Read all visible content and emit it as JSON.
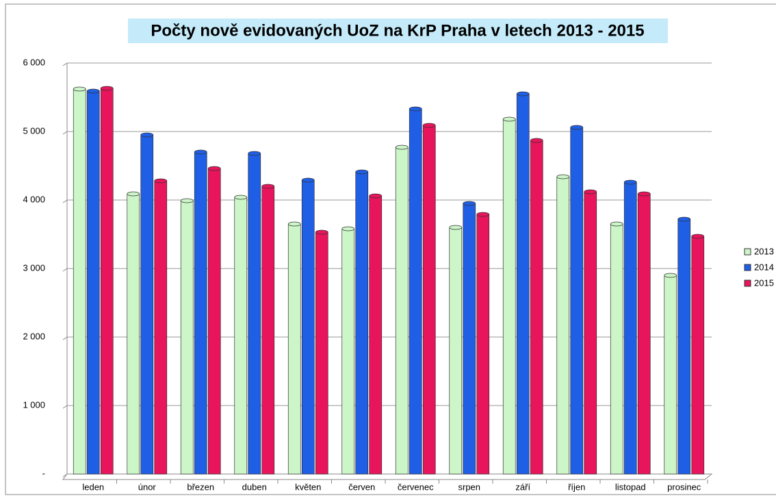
{
  "chart_data": {
    "type": "bar",
    "title": "Počty nově evidovaných UoZ na KrP Praha v letech 2013 - 2015",
    "categories": [
      "leden",
      "únor",
      "březen",
      "duben",
      "květen",
      "červen",
      "červenec",
      "srpen",
      "září",
      "říjen",
      "listopad",
      "prosinec"
    ],
    "series": [
      {
        "name": "2013",
        "color": "#ccf5c8",
        "values": [
          5620,
          4090,
          3990,
          4040,
          3650,
          3580,
          4770,
          3600,
          5180,
          4340,
          3650,
          2900
        ]
      },
      {
        "name": "2014",
        "color": "#1f5fe6",
        "values": [
          5590,
          4950,
          4700,
          4680,
          4290,
          4410,
          5330,
          3950,
          5550,
          5060,
          4260,
          3720
        ]
      },
      {
        "name": "2015",
        "color": "#e8145c",
        "values": [
          5630,
          4280,
          4460,
          4200,
          3530,
          4060,
          5090,
          3790,
          4870,
          4120,
          4090,
          3470
        ]
      }
    ],
    "ylim": [
      0,
      6000
    ],
    "yticks": [
      {
        "value": 0,
        "label": "-"
      },
      {
        "value": 1000,
        "label": "1 000"
      },
      {
        "value": 2000,
        "label": "2 000"
      },
      {
        "value": 3000,
        "label": "3 000"
      },
      {
        "value": 4000,
        "label": "4 000"
      },
      {
        "value": 5000,
        "label": "5 000"
      },
      {
        "value": 6000,
        "label": "6 000"
      }
    ],
    "grid": true,
    "legend": "right"
  }
}
